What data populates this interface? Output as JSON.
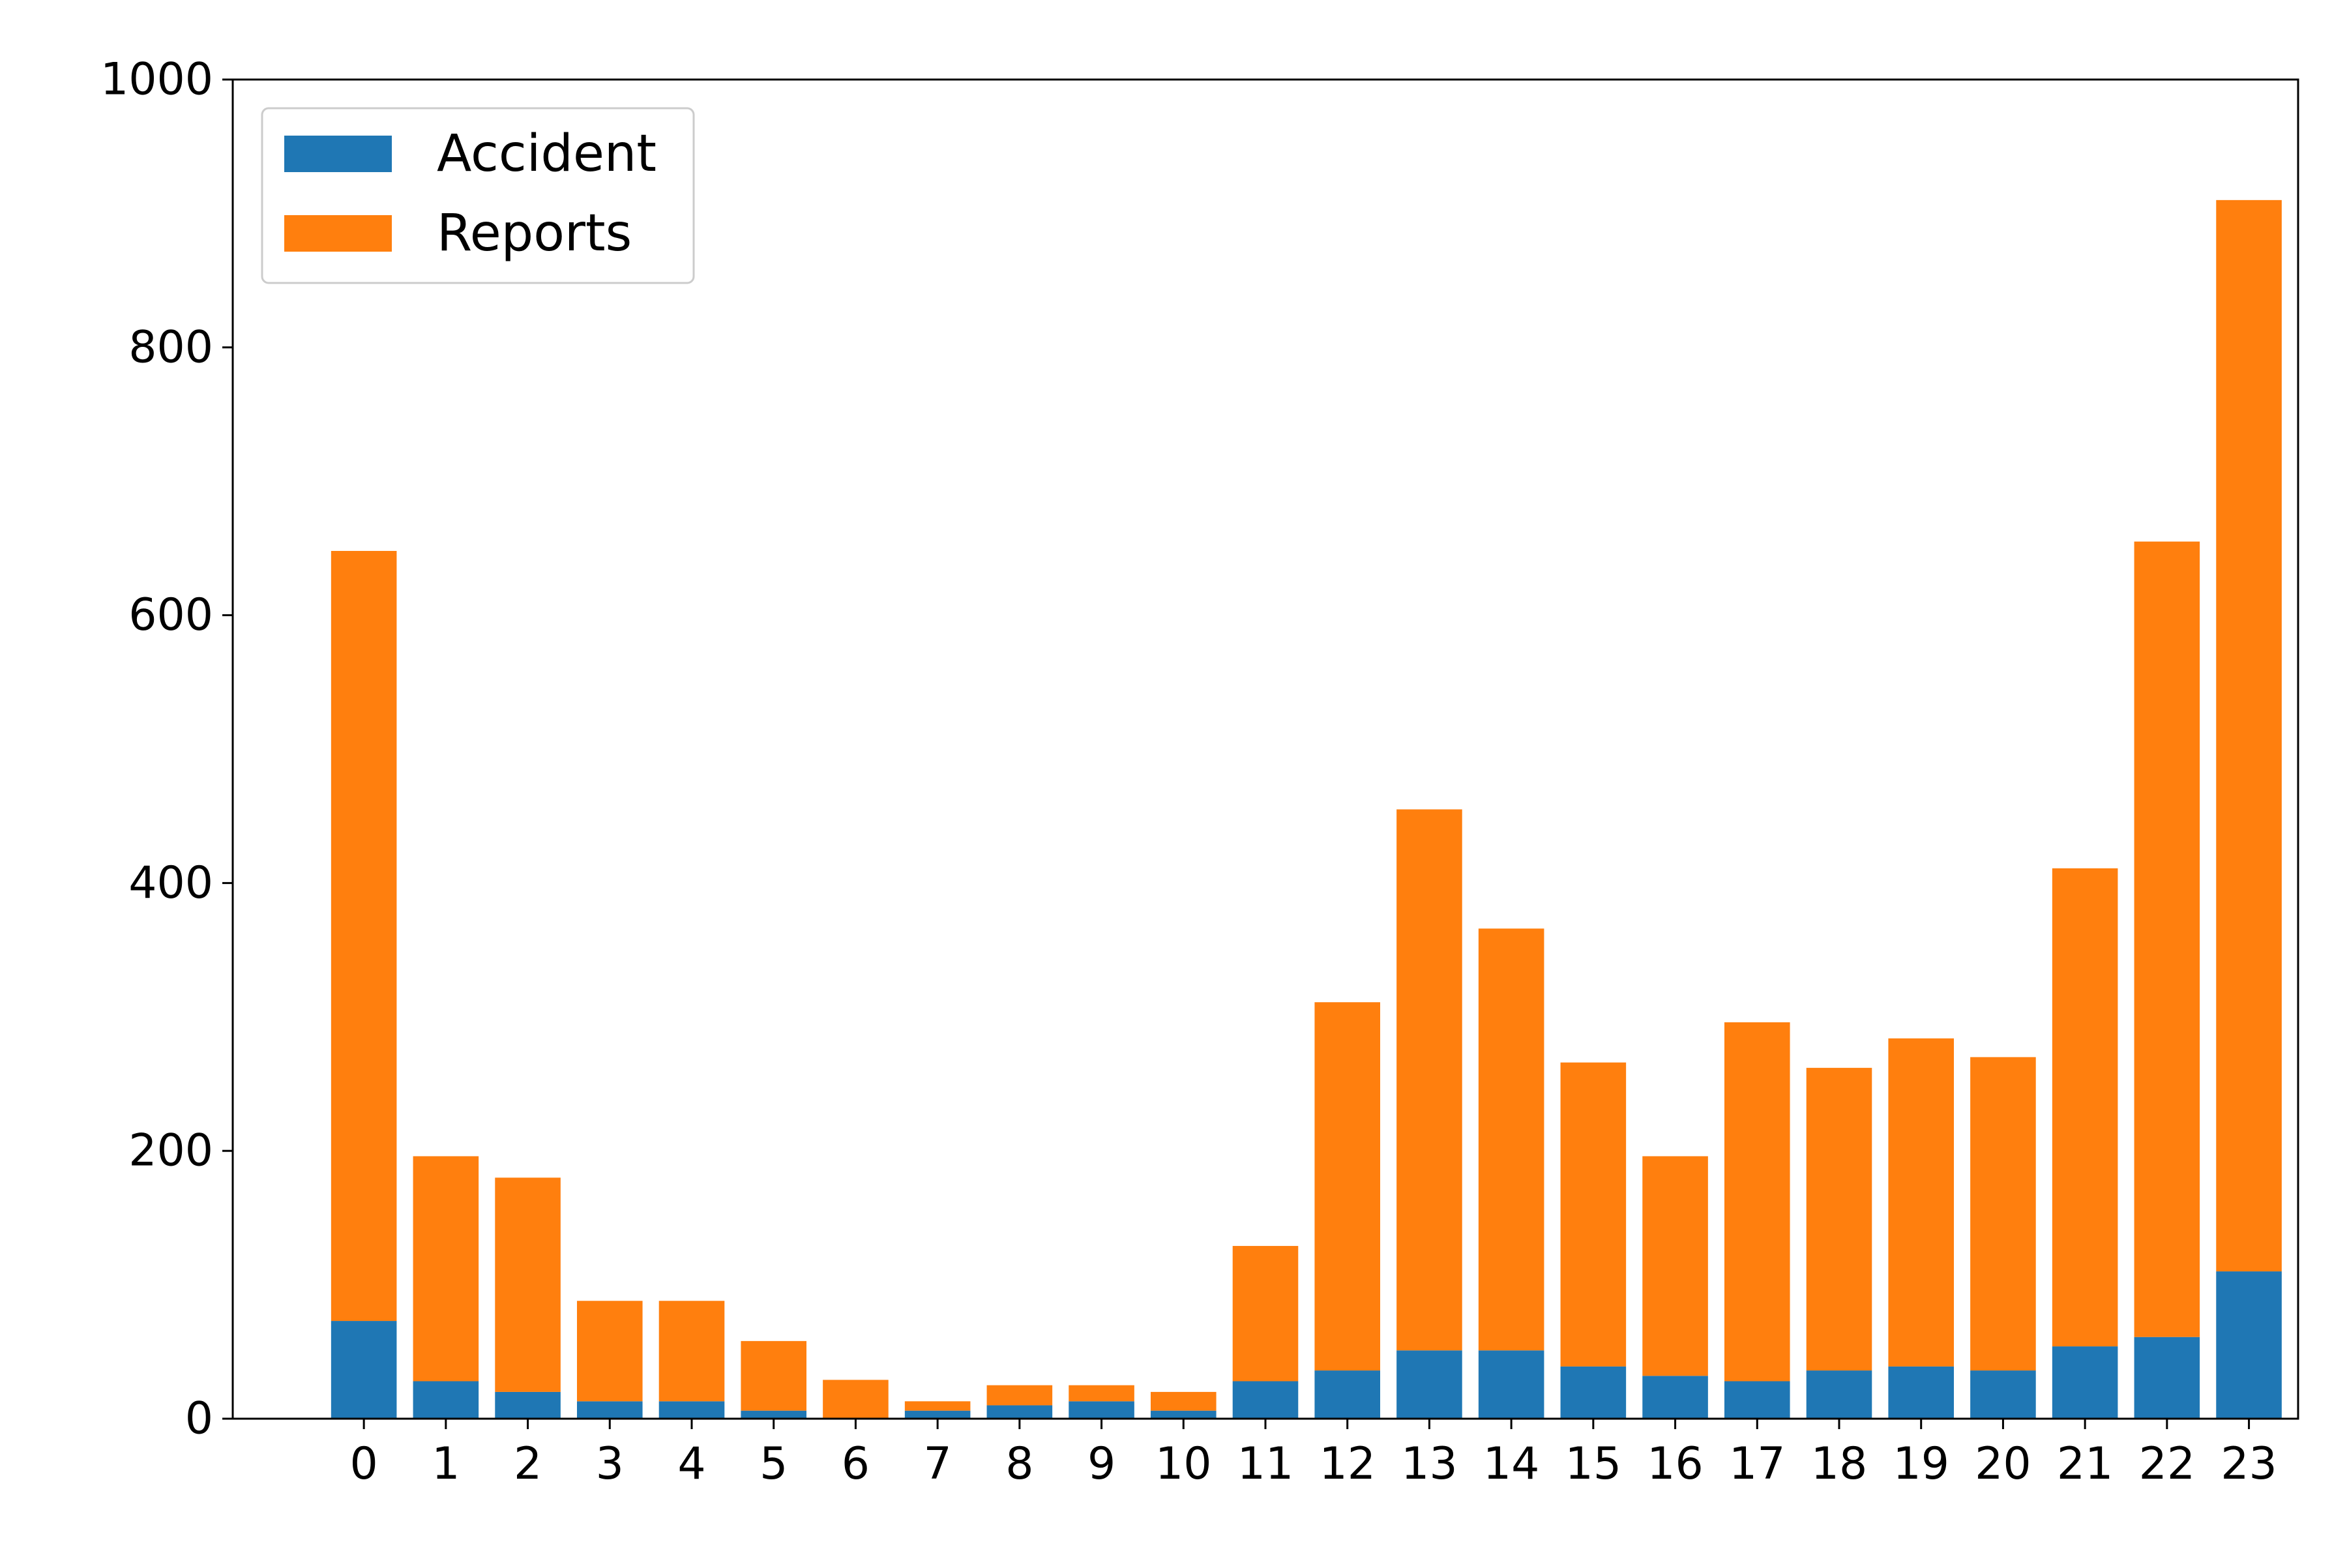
{
  "chart_data": {
    "type": "bar",
    "stacked": true,
    "categories": [
      "0",
      "1",
      "2",
      "3",
      "4",
      "5",
      "6",
      "7",
      "8",
      "9",
      "10",
      "11",
      "12",
      "13",
      "14",
      "15",
      "16",
      "17",
      "18",
      "19",
      "20",
      "21",
      "22",
      "23"
    ],
    "series": [
      {
        "name": "Accident",
        "color": "#1f77b4",
        "values": [
          73,
          28,
          20,
          13,
          13,
          6,
          0,
          6,
          10,
          13,
          6,
          28,
          36,
          51,
          51,
          39,
          32,
          28,
          36,
          39,
          36,
          54,
          61,
          110
        ]
      },
      {
        "name": "Reports",
        "color": "#ff7f0e",
        "values": [
          575,
          168,
          160,
          75,
          75,
          52,
          29,
          7,
          15,
          12,
          14,
          101,
          275,
          404,
          315,
          227,
          164,
          268,
          226,
          245,
          234,
          357,
          594,
          800
        ]
      }
    ],
    "ylim": [
      0,
      1000
    ],
    "yticks": [
      0,
      200,
      400,
      600,
      800,
      1000
    ],
    "title": "",
    "xlabel": "",
    "ylabel": "",
    "legend": "upper-left",
    "grid": false
  }
}
